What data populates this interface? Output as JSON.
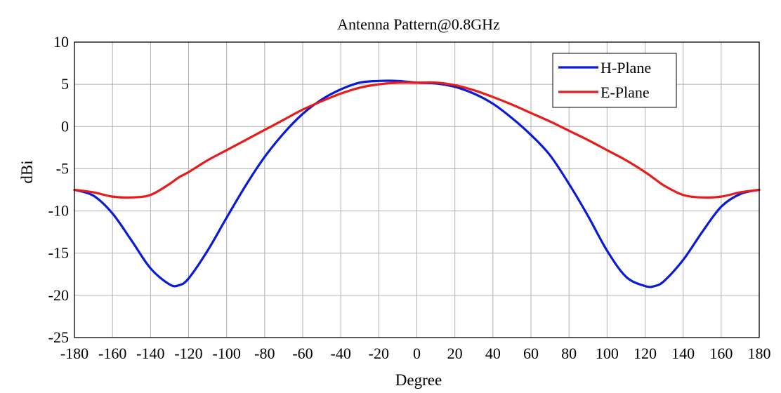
{
  "chart_data": {
    "type": "line",
    "title": "Antenna Pattern@0.8GHz",
    "xlabel": "Degree",
    "ylabel": "dBi",
    "xlim": [
      -180,
      180
    ],
    "ylim": [
      -25,
      10
    ],
    "xticks": [
      -180,
      -160,
      -140,
      -120,
      -100,
      -80,
      -60,
      -40,
      -20,
      0,
      20,
      40,
      60,
      80,
      100,
      120,
      140,
      160,
      180
    ],
    "yticks": [
      10,
      5,
      0,
      -5,
      -10,
      -15,
      -20,
      -25
    ],
    "grid": true,
    "legend_position": "top-right",
    "x": [
      -180,
      -170,
      -160,
      -150,
      -140,
      -130,
      -125,
      -120,
      -110,
      -100,
      -90,
      -80,
      -70,
      -60,
      -50,
      -40,
      -30,
      -20,
      -10,
      0,
      10,
      20,
      30,
      40,
      50,
      60,
      70,
      80,
      90,
      100,
      110,
      120,
      125,
      130,
      140,
      150,
      160,
      170,
      180
    ],
    "series": [
      {
        "name": "H-Plane",
        "color": "#0a1bd8",
        "values": [
          -7.5,
          -8.2,
          -10.3,
          -13.5,
          -16.8,
          -18.7,
          -18.8,
          -18.0,
          -14.7,
          -10.8,
          -7.0,
          -3.6,
          -0.8,
          1.5,
          3.2,
          4.4,
          5.2,
          5.4,
          5.4,
          5.2,
          5.1,
          4.7,
          3.9,
          2.7,
          1.0,
          -1.0,
          -3.4,
          -6.8,
          -10.6,
          -14.7,
          -17.8,
          -18.9,
          -18.9,
          -18.3,
          -15.8,
          -12.5,
          -9.5,
          -8.0,
          -7.5
        ]
      },
      {
        "name": "E-Plane",
        "color": "#e81b1b",
        "values": [
          -7.5,
          -7.8,
          -8.3,
          -8.4,
          -8.1,
          -6.8,
          -6.0,
          -5.4,
          -4.0,
          -2.8,
          -1.6,
          -0.4,
          0.8,
          2.0,
          3.0,
          3.9,
          4.6,
          5.0,
          5.2,
          5.2,
          5.2,
          4.9,
          4.3,
          3.5,
          2.6,
          1.6,
          0.6,
          -0.5,
          -1.6,
          -2.8,
          -4.0,
          -5.4,
          -6.2,
          -7.0,
          -8.1,
          -8.4,
          -8.3,
          -7.8,
          -7.5
        ]
      }
    ]
  }
}
